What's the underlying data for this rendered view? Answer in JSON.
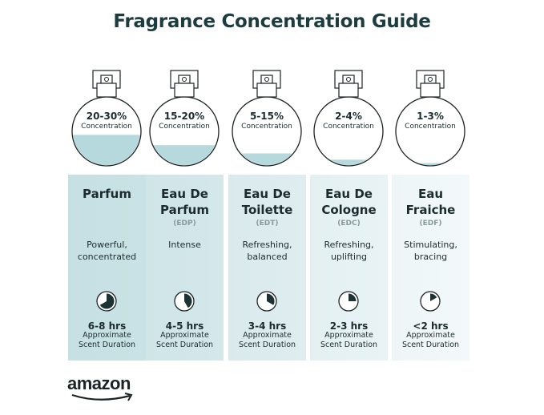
{
  "title": "Fragrance Concentration Guide",
  "colors": {
    "accent": "#1d3c40",
    "liquid": "#b5d9dc",
    "card_left": "#c7e1e4",
    "card_right": "#eef6f7"
  },
  "logo": "amazon",
  "types": [
    {
      "concentration": "20-30%",
      "concentration_label": "Concentration",
      "fill_level": 0.45,
      "name_line1": "Parfum",
      "name_line2": "",
      "abbr": "",
      "desc_line1": "Powerful,",
      "desc_line2": "concentrated",
      "duration": "6-8 hrs",
      "duration_label1": "Approximate",
      "duration_label2": "Scent Duration",
      "clock_fraction": 0.667,
      "icon": "clock-pie-icon"
    },
    {
      "concentration": "15-20%",
      "concentration_label": "Concentration",
      "fill_level": 0.3,
      "name_line1": "Eau De",
      "name_line2": "Parfum",
      "abbr": "(EDP)",
      "desc_line1": "Intense",
      "desc_line2": "",
      "duration": "4-5 hrs",
      "duration_label1": "Approximate",
      "duration_label2": "Scent Duration",
      "clock_fraction": 0.417,
      "icon": "clock-pie-icon"
    },
    {
      "concentration": "5-15%",
      "concentration_label": "Concentration",
      "fill_level": 0.18,
      "name_line1": "Eau De",
      "name_line2": "Toilette",
      "abbr": "(EDT)",
      "desc_line1": "Refreshing,",
      "desc_line2": "balanced",
      "duration": "3-4 hrs",
      "duration_label1": "Approximate",
      "duration_label2": "Scent Duration",
      "clock_fraction": 0.333,
      "icon": "clock-pie-icon"
    },
    {
      "concentration": "2-4%",
      "concentration_label": "Concentration",
      "fill_level": 0.09,
      "name_line1": "Eau De",
      "name_line2": "Cologne",
      "abbr": "(EDC)",
      "desc_line1": "Refreshing,",
      "desc_line2": "uplifting",
      "duration": "2-3 hrs",
      "duration_label1": "Approximate",
      "duration_label2": "Scent Duration",
      "clock_fraction": 0.25,
      "icon": "clock-pie-icon"
    },
    {
      "concentration": "1-3%",
      "concentration_label": "Concentration",
      "fill_level": 0.04,
      "name_line1": "Eau",
      "name_line2": "Fraiche",
      "abbr": "(EDF)",
      "desc_line1": "Stimulating,",
      "desc_line2": "bracing",
      "duration": "<2 hrs",
      "duration_label1": "Approximate",
      "duration_label2": "Scent Duration",
      "clock_fraction": 0.167,
      "icon": "clock-pie-icon"
    }
  ]
}
